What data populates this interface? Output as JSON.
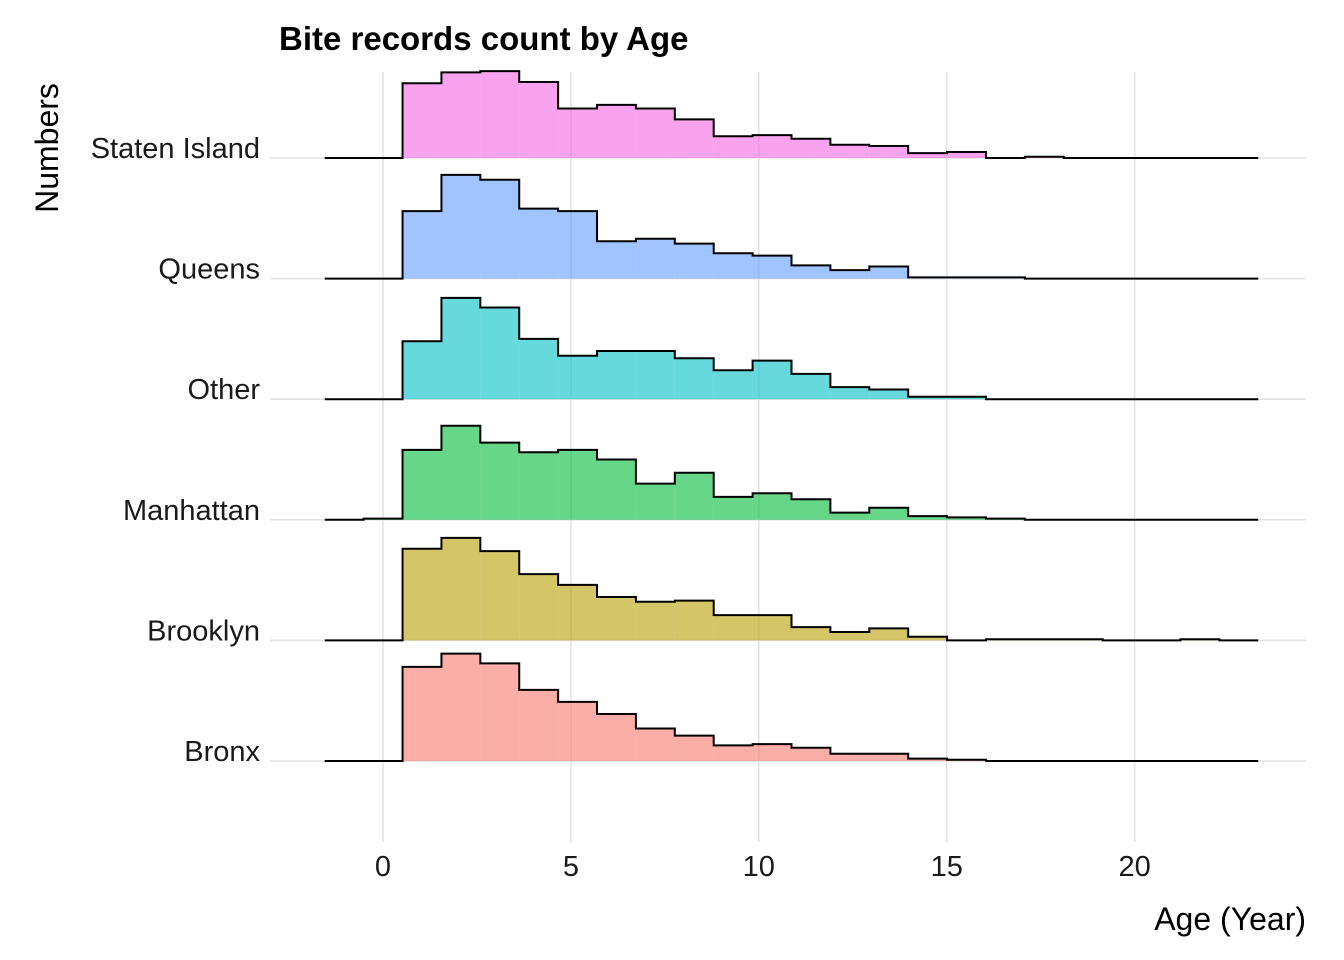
{
  "chart_data": {
    "type": "ridgeline-histogram",
    "title": "Bite records count by Age",
    "xlabel": "Age (Year)",
    "ylabel": "Numbers",
    "xlim": [
      -1.55,
      23.3
    ],
    "x_ticks": [
      0,
      5,
      10,
      15,
      20
    ],
    "x_tick_labels": [
      "0",
      "5",
      "10",
      "15",
      "20"
    ],
    "bin_start": -1.55,
    "bin_width": 1.035,
    "height_units": "relative height (1 = spacing between ridges)",
    "grid": true,
    "legend": "none",
    "series": [
      {
        "name": "Bronx",
        "color": "#F8766D",
        "values": [
          0,
          0,
          0.78,
          0.89,
          0.81,
          0.59,
          0.49,
          0.39,
          0.27,
          0.21,
          0.13,
          0.14,
          0.11,
          0.06,
          0.06,
          0.02,
          0.01,
          0,
          0,
          0,
          0,
          0,
          0,
          0
        ]
      },
      {
        "name": "Brooklyn",
        "color": "#B79F00",
        "values": [
          0,
          0,
          0.76,
          0.85,
          0.74,
          0.55,
          0.46,
          0.36,
          0.32,
          0.33,
          0.21,
          0.21,
          0.11,
          0.07,
          0.1,
          0.03,
          0,
          0.01,
          0.01,
          0.01,
          0,
          0,
          0.01,
          0
        ]
      },
      {
        "name": "Manhattan",
        "color": "#00BA38",
        "values": [
          0,
          0.01,
          0.58,
          0.78,
          0.64,
          0.56,
          0.58,
          0.5,
          0.3,
          0.39,
          0.19,
          0.22,
          0.17,
          0.06,
          0.1,
          0.03,
          0.02,
          0.01,
          0,
          0,
          0,
          0,
          0,
          0
        ]
      },
      {
        "name": "Other",
        "color": "#00BFC4",
        "values": [
          0,
          0,
          0.48,
          0.84,
          0.76,
          0.5,
          0.36,
          0.4,
          0.4,
          0.34,
          0.24,
          0.32,
          0.21,
          0.1,
          0.08,
          0.02,
          0.02,
          0,
          0,
          0,
          0,
          0,
          0,
          0
        ]
      },
      {
        "name": "Queens",
        "color": "#619CFF",
        "values": [
          0,
          0,
          0.56,
          0.86,
          0.82,
          0.58,
          0.56,
          0.31,
          0.33,
          0.29,
          0.21,
          0.19,
          0.11,
          0.07,
          0.1,
          0.01,
          0.01,
          0.01,
          0,
          0,
          0,
          0,
          0,
          0
        ]
      },
      {
        "name": "Staten Island",
        "color": "#F564E3",
        "values": [
          0,
          0,
          0.62,
          0.71,
          0.72,
          0.63,
          0.41,
          0.44,
          0.41,
          0.32,
          0.18,
          0.19,
          0.16,
          0.11,
          0.1,
          0.04,
          0.05,
          0,
          0.01,
          0,
          0,
          0,
          0,
          0
        ]
      }
    ]
  }
}
